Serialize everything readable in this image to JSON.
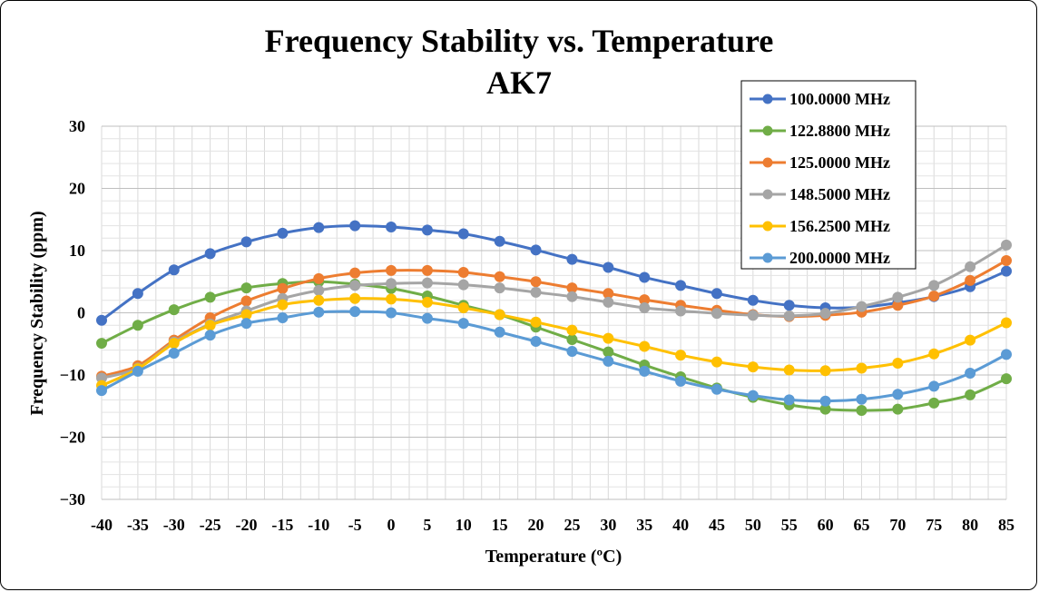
{
  "chart_data": {
    "type": "line",
    "title": "Frequency Stability vs. Temperature",
    "subtitle": "AK7",
    "xlabel": "Temperature (ºC)",
    "ylabel": "Frequency Stability (ppm)",
    "xlim": [
      -40,
      85
    ],
    "ylim": [
      -30,
      30
    ],
    "x": [
      -40,
      -35,
      -30,
      -25,
      -20,
      -15,
      -10,
      -5,
      0,
      5,
      10,
      15,
      20,
      25,
      30,
      35,
      40,
      45,
      50,
      55,
      60,
      65,
      70,
      75,
      80,
      85
    ],
    "x_tick_labels": [
      "-40",
      "-35",
      "-30",
      "-25",
      "-20",
      "-15",
      "-10",
      "-5",
      "0",
      "5",
      "10",
      "15",
      "20",
      "25",
      "30",
      "35",
      "40",
      "45",
      "50",
      "55",
      "60",
      "65",
      "70",
      "75",
      "80",
      "85"
    ],
    "y_ticks": [
      -30,
      -20,
      -10,
      0,
      10,
      20,
      30
    ],
    "y_tick_labels": [
      "−30",
      "−20",
      "−10",
      "0",
      "10",
      "20",
      "30"
    ],
    "grid": true,
    "legend_position": "top-right",
    "series": [
      {
        "name": "100.0000 MHz",
        "color": "#4472C4",
        "values": [
          -1.2,
          3.1,
          6.9,
          9.5,
          11.4,
          12.8,
          13.7,
          14.0,
          13.8,
          13.3,
          12.7,
          11.5,
          10.1,
          8.6,
          7.3,
          5.7,
          4.4,
          3.1,
          2.0,
          1.2,
          0.8,
          0.9,
          1.6,
          2.6,
          4.2,
          6.7
        ]
      },
      {
        "name": "122.8800 MHz",
        "color": "#70AD47",
        "values": [
          -4.9,
          -2.0,
          0.5,
          2.5,
          4.0,
          4.7,
          5.0,
          4.6,
          3.9,
          2.7,
          1.2,
          -0.3,
          -2.3,
          -4.3,
          -6.3,
          -8.4,
          -10.3,
          -12.1,
          -13.6,
          -14.8,
          -15.5,
          -15.7,
          -15.5,
          -14.5,
          -13.2,
          -10.6
        ]
      },
      {
        "name": "125.0000 MHz",
        "color": "#ED7D31",
        "values": [
          -10.2,
          -8.5,
          -4.4,
          -0.8,
          1.9,
          3.9,
          5.5,
          6.4,
          6.8,
          6.8,
          6.5,
          5.8,
          5.0,
          4.0,
          3.1,
          2.1,
          1.2,
          0.4,
          -0.3,
          -0.6,
          -0.4,
          0.1,
          1.2,
          2.7,
          5.2,
          8.4
        ]
      },
      {
        "name": "148.5000 MHz",
        "color": "#A5A5A5",
        "values": [
          -10.5,
          -8.9,
          -4.7,
          -1.8,
          0.3,
          2.3,
          3.6,
          4.4,
          4.7,
          4.8,
          4.5,
          4.0,
          3.3,
          2.6,
          1.7,
          0.8,
          0.3,
          -0.1,
          -0.4,
          -0.5,
          -0.1,
          1.0,
          2.5,
          4.4,
          7.4,
          10.9
        ]
      },
      {
        "name": "156.2500 MHz",
        "color": "#FFC000",
        "values": [
          -11.7,
          -9.0,
          -4.9,
          -2.0,
          -0.3,
          1.3,
          2.0,
          2.3,
          2.2,
          1.7,
          0.8,
          -0.3,
          -1.5,
          -2.8,
          -4.1,
          -5.4,
          -6.8,
          -7.9,
          -8.7,
          -9.2,
          -9.3,
          -8.9,
          -8.1,
          -6.6,
          -4.4,
          -1.6
        ]
      },
      {
        "name": "200.0000 MHz",
        "color": "#5B9BD5",
        "values": [
          -12.5,
          -9.4,
          -6.5,
          -3.6,
          -1.7,
          -0.8,
          0.1,
          0.2,
          0.0,
          -0.9,
          -1.7,
          -3.1,
          -4.6,
          -6.2,
          -7.8,
          -9.4,
          -11.0,
          -12.3,
          -13.3,
          -14.0,
          -14.2,
          -13.9,
          -13.1,
          -11.8,
          -9.7,
          -6.7
        ]
      }
    ]
  }
}
